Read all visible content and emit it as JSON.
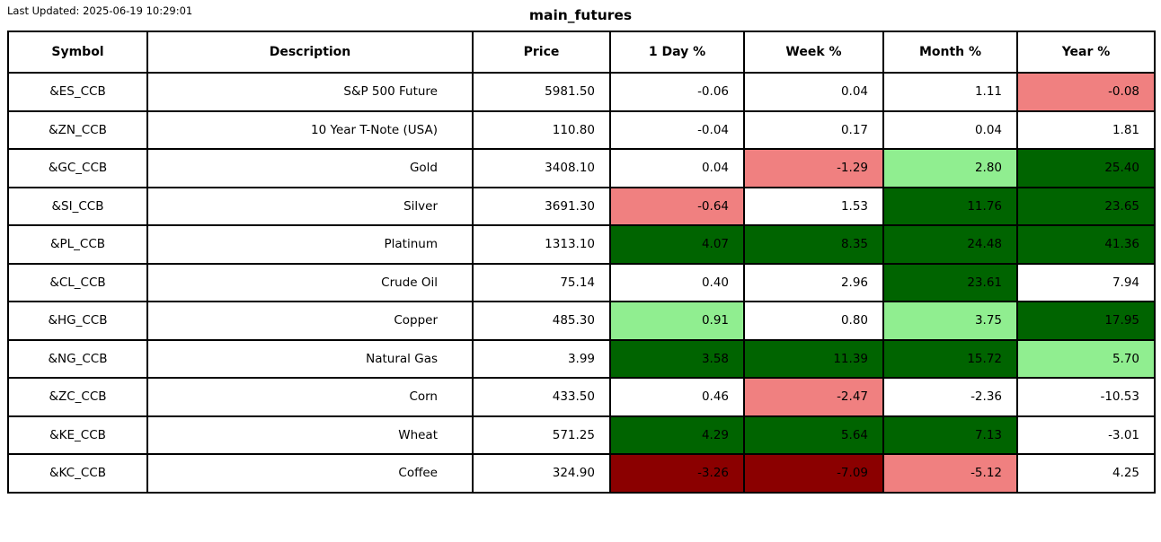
{
  "header": {
    "last_updated": "Last Updated: 2025-06-19 10:29:01",
    "title": "main_futures"
  },
  "colors": {
    "flat": "#ffffff",
    "up1": "#90ee90",
    "up2": "#006400",
    "down1": "#f08080",
    "down2": "#8b0000"
  },
  "chart_data": {
    "type": "table",
    "title": "main_futures",
    "columns": [
      "Symbol",
      "Description",
      "Price",
      "1 Day %",
      "Week %",
      "Month %",
      "Year %"
    ],
    "rows": [
      {
        "symbol": "&ES_CCB",
        "description": "S&P 500 Future",
        "price": "5981.50",
        "changes": [
          {
            "v": "-0.06",
            "tone": "flat"
          },
          {
            "v": "0.04",
            "tone": "flat"
          },
          {
            "v": "1.11",
            "tone": "flat"
          },
          {
            "v": "-0.08",
            "tone": "down1"
          }
        ]
      },
      {
        "symbol": "&ZN_CCB",
        "description": "10 Year T-Note (USA)",
        "price": "110.80",
        "changes": [
          {
            "v": "-0.04",
            "tone": "flat"
          },
          {
            "v": "0.17",
            "tone": "flat"
          },
          {
            "v": "0.04",
            "tone": "flat"
          },
          {
            "v": "1.81",
            "tone": "flat"
          }
        ]
      },
      {
        "symbol": "&GC_CCB",
        "description": "Gold",
        "price": "3408.10",
        "changes": [
          {
            "v": "0.04",
            "tone": "flat"
          },
          {
            "v": "-1.29",
            "tone": "down1"
          },
          {
            "v": "2.80",
            "tone": "up1"
          },
          {
            "v": "25.40",
            "tone": "up2"
          }
        ]
      },
      {
        "symbol": "&SI_CCB",
        "description": "Silver",
        "price": "3691.30",
        "changes": [
          {
            "v": "-0.64",
            "tone": "down1"
          },
          {
            "v": "1.53",
            "tone": "flat"
          },
          {
            "v": "11.76",
            "tone": "up2"
          },
          {
            "v": "23.65",
            "tone": "up2"
          }
        ]
      },
      {
        "symbol": "&PL_CCB",
        "description": "Platinum",
        "price": "1313.10",
        "changes": [
          {
            "v": "4.07",
            "tone": "up2"
          },
          {
            "v": "8.35",
            "tone": "up2"
          },
          {
            "v": "24.48",
            "tone": "up2"
          },
          {
            "v": "41.36",
            "tone": "up2"
          }
        ]
      },
      {
        "symbol": "&CL_CCB",
        "description": "Crude Oil",
        "price": "75.14",
        "changes": [
          {
            "v": "0.40",
            "tone": "flat"
          },
          {
            "v": "2.96",
            "tone": "flat"
          },
          {
            "v": "23.61",
            "tone": "up2"
          },
          {
            "v": "7.94",
            "tone": "flat"
          }
        ]
      },
      {
        "symbol": "&HG_CCB",
        "description": "Copper",
        "price": "485.30",
        "changes": [
          {
            "v": "0.91",
            "tone": "up1"
          },
          {
            "v": "0.80",
            "tone": "flat"
          },
          {
            "v": "3.75",
            "tone": "up1"
          },
          {
            "v": "17.95",
            "tone": "up2"
          }
        ]
      },
      {
        "symbol": "&NG_CCB",
        "description": "Natural Gas",
        "price": "3.99",
        "changes": [
          {
            "v": "3.58",
            "tone": "up2"
          },
          {
            "v": "11.39",
            "tone": "up2"
          },
          {
            "v": "15.72",
            "tone": "up2"
          },
          {
            "v": "5.70",
            "tone": "up1"
          }
        ]
      },
      {
        "symbol": "&ZC_CCB",
        "description": "Corn",
        "price": "433.50",
        "changes": [
          {
            "v": "0.46",
            "tone": "flat"
          },
          {
            "v": "-2.47",
            "tone": "down1"
          },
          {
            "v": "-2.36",
            "tone": "flat"
          },
          {
            "v": "-10.53",
            "tone": "flat"
          }
        ]
      },
      {
        "symbol": "&KE_CCB",
        "description": "Wheat",
        "price": "571.25",
        "changes": [
          {
            "v": "4.29",
            "tone": "up2"
          },
          {
            "v": "5.64",
            "tone": "up2"
          },
          {
            "v": "7.13",
            "tone": "up2"
          },
          {
            "v": "-3.01",
            "tone": "flat"
          }
        ]
      },
      {
        "symbol": "&KC_CCB",
        "description": "Coffee",
        "price": "324.90",
        "changes": [
          {
            "v": "-3.26",
            "tone": "down2"
          },
          {
            "v": "-7.09",
            "tone": "down2"
          },
          {
            "v": "-5.12",
            "tone": "down1"
          },
          {
            "v": "4.25",
            "tone": "flat"
          }
        ]
      }
    ]
  }
}
